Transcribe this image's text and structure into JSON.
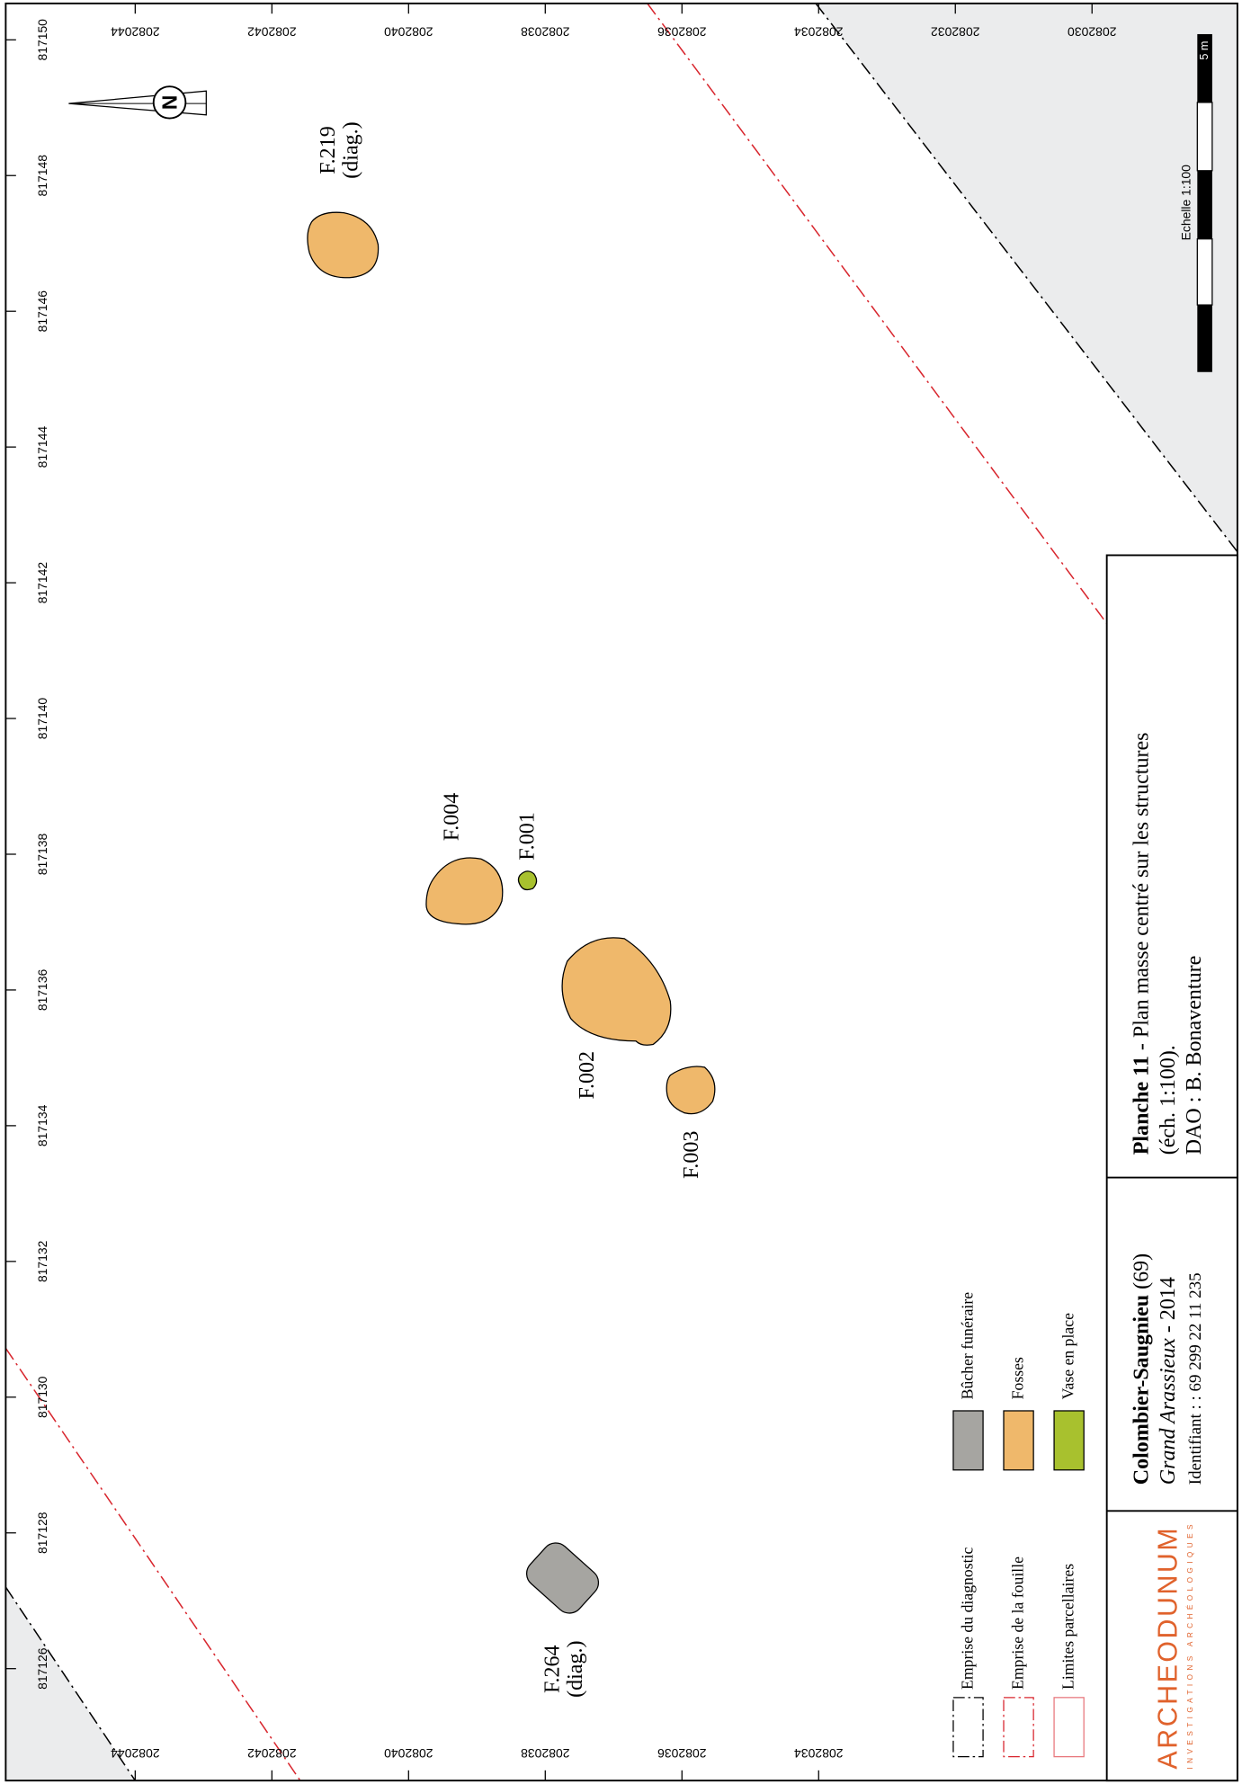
{
  "map": {
    "y_coords": [
      817150,
      817148,
      817146,
      817144,
      817142,
      817140,
      817138,
      817136,
      817134,
      817132,
      817130,
      817128,
      817126
    ],
    "x_coords_top": [
      2082044,
      2082042,
      2082040,
      2082038,
      2082036,
      2082034,
      2082032,
      2082030
    ],
    "x_coords_bottom": [
      2082044,
      2082042,
      2082040,
      2082038,
      2082036,
      2082034
    ],
    "north": "N",
    "scale": {
      "length": "5 m",
      "label": "Echelle 1:100"
    },
    "features": [
      {
        "label": "F.219",
        "note": "(diag.)"
      },
      {
        "label": "F.004"
      },
      {
        "label": "F.001"
      },
      {
        "label": "F.002"
      },
      {
        "label": "F.003"
      },
      {
        "label": "F.264",
        "note": "(diag.)"
      }
    ],
    "legend": {
      "lines": [
        "Emprise du diagnostic",
        "Emprise de la fouille",
        "Limites parcellaires"
      ],
      "fills": [
        "Bûcher funéraire",
        "Fosses",
        "Vase en place"
      ]
    },
    "title_block": {
      "plate": "Planche 11",
      "plate_title": " - Plan masse centré sur les structures",
      "scale": "(éch. 1:100).",
      "author": "DAO : B. Bonaventure",
      "site": "Colombier-Saugnieu",
      "dept": " (69)",
      "place": "Grand Arassieux",
      "year": " - 2014",
      "id": "Identifiant : : 69 299 22 11 235",
      "logo": "ARCHEODUNUM",
      "logo_sub": "INVESTIGATIONS ARCHÉOLOGIQUES"
    }
  }
}
